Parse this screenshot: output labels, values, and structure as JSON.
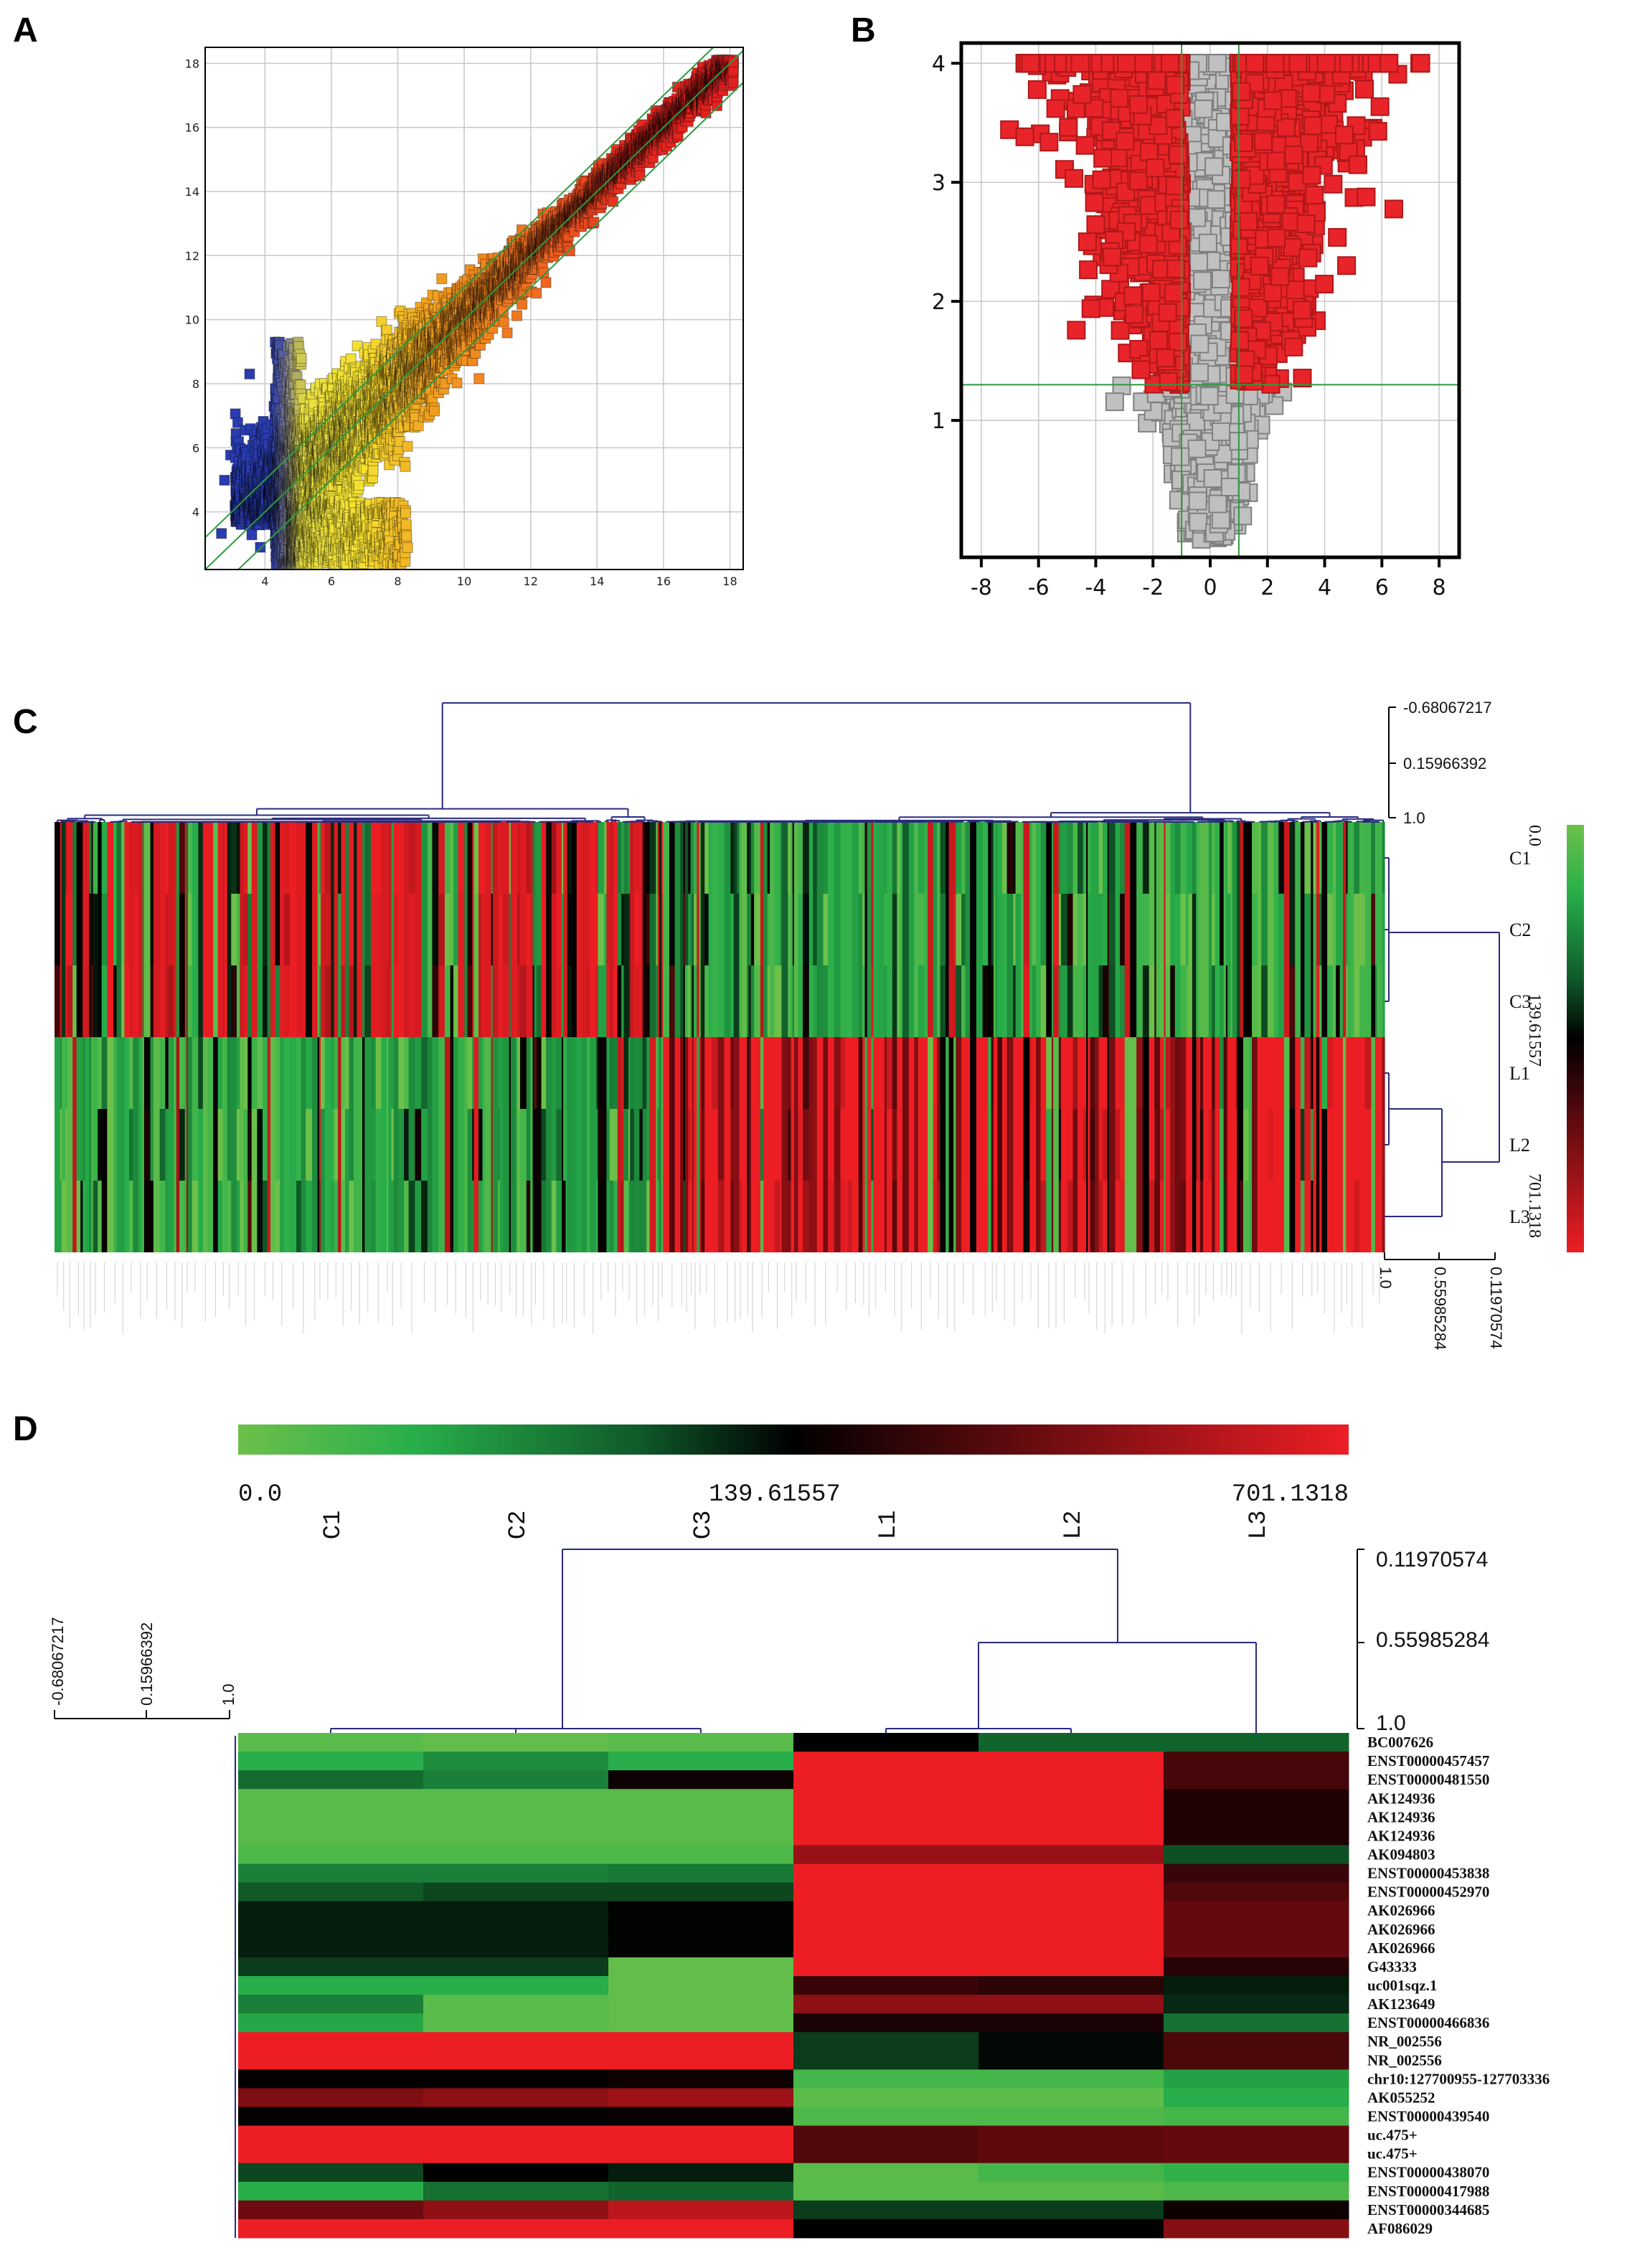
{
  "panels": {
    "a": "A",
    "b": "B",
    "c": "C",
    "d": "D"
  },
  "colors": {
    "low": "#6cc04a",
    "mid": "#000000",
    "high": "#ec1e24",
    "dendrogram": "#2a2a80",
    "fold_line": "#2e9a3e",
    "significant": "#e8242a",
    "not_significant": "#c0c0c0"
  },
  "chart_data": [
    {
      "panel": "A",
      "type": "scatter",
      "xlim": [
        2.2,
        18.4
      ],
      "ylim": [
        2.2,
        18.5
      ],
      "x_ticks": [
        "4",
        "6",
        "8",
        "10",
        "12",
        "14",
        "16",
        "18"
      ],
      "y_ticks": [
        "4",
        "6",
        "8",
        "10",
        "12",
        "14",
        "16",
        "18"
      ],
      "grid": true,
      "fold_change_lines_offsets": [
        -1,
        0,
        1
      ],
      "color_scale": [
        "#2a3cb0",
        "#808080",
        "#e8e040",
        "#f0a020",
        "#e42a20"
      ]
    },
    {
      "panel": "B",
      "type": "scatter",
      "xlim": [
        -8.7,
        8.7
      ],
      "ylim": [
        -0.15,
        4.17
      ],
      "x_ticks": [
        "-8",
        "-6",
        "-4",
        "-2",
        "0",
        "2",
        "4",
        "6",
        "8"
      ],
      "y_ticks": [
        "1",
        "2",
        "3",
        "4"
      ],
      "grid": true,
      "thresholds": {
        "x": [
          -1,
          1
        ],
        "y": 1.3
      }
    },
    {
      "panel": "C",
      "type": "heatmap",
      "rows": [
        "C1",
        "C2",
        "C3",
        "L1",
        "L2",
        "L3"
      ],
      "colorbar": {
        "min": "0.0",
        "mid": "139.61557",
        "max": "701.1318"
      },
      "column_tree_scale": [
        "-0.68067217",
        "0.15966392",
        "1.0"
      ],
      "row_tree_scale": [
        "1.0",
        "0.55985284",
        "0.11970574"
      ]
    },
    {
      "panel": "D",
      "type": "heatmap",
      "columns": [
        "C1",
        "C2",
        "C3",
        "L1",
        "L2",
        "L3"
      ],
      "colorbar": {
        "min": "0.0",
        "mid": "139.61557",
        "max": "701.1318"
      },
      "column_tree_scale": [
        "0.11970574",
        "0.55985284",
        "1.0"
      ],
      "row_tree_scale": [
        "-0.68067217",
        "0.15966392",
        "1.0"
      ],
      "rows": [
        {
          "label": "BC007626",
          "values": [
            10,
            5,
            10,
            140,
            90,
            90
          ]
        },
        {
          "label": "ENST00000457457",
          "values": [
            35,
            60,
            35,
            701,
            701,
            250
          ]
        },
        {
          "label": "ENST00000481550",
          "values": [
            85,
            70,
            160,
            701,
            701,
            250
          ]
        },
        {
          "label": "AK124936",
          "values": [
            10,
            10,
            10,
            701,
            701,
            190
          ]
        },
        {
          "label": "AK124936",
          "values": [
            10,
            10,
            10,
            701,
            701,
            190
          ]
        },
        {
          "label": "AK124936",
          "values": [
            10,
            10,
            10,
            701,
            701,
            190
          ]
        },
        {
          "label": "AK094803",
          "values": [
            15,
            15,
            15,
            450,
            450,
            100
          ]
        },
        {
          "label": "ENST00000453838",
          "values": [
            70,
            70,
            75,
            701,
            701,
            230
          ]
        },
        {
          "label": "ENST00000452970",
          "values": [
            95,
            105,
            105,
            701,
            701,
            270
          ]
        },
        {
          "label": "AK026966",
          "values": [
            125,
            125,
            138,
            701,
            701,
            300
          ]
        },
        {
          "label": "AK026966",
          "values": [
            125,
            125,
            138,
            701,
            701,
            300
          ]
        },
        {
          "label": "AK026966",
          "values": [
            125,
            125,
            138,
            701,
            701,
            300
          ]
        },
        {
          "label": "G43333",
          "values": [
            110,
            110,
            5,
            701,
            701,
            200
          ]
        },
        {
          "label": "uc001sqz.1",
          "values": [
            35,
            35,
            5,
            230,
            210,
            125
          ]
        },
        {
          "label": "AK123649",
          "values": [
            70,
            10,
            5,
            420,
            420,
            120
          ]
        },
        {
          "label": "ENST00000466836",
          "values": [
            40,
            10,
            5,
            180,
            180,
            80
          ]
        },
        {
          "label": "NR_002556",
          "values": [
            701,
            701,
            701,
            110,
            135,
            260
          ]
        },
        {
          "label": "NR_002556",
          "values": [
            701,
            701,
            701,
            110,
            135,
            260
          ]
        },
        {
          "label": "chr10:127700955-127703336",
          "values": [
            150,
            150,
            160,
            20,
            20,
            45
          ]
        },
        {
          "label": "AK055252",
          "values": [
            380,
            420,
            470,
            8,
            8,
            35
          ]
        },
        {
          "label": "ENST00000439540",
          "values": [
            150,
            150,
            155,
            15,
            15,
            20
          ]
        },
        {
          "label": "uc.475+",
          "values": [
            701,
            701,
            701,
            270,
            290,
            300
          ]
        },
        {
          "label": "uc.475+",
          "values": [
            701,
            701,
            701,
            270,
            290,
            300
          ]
        },
        {
          "label": "ENST00000438070",
          "values": [
            105,
            140,
            125,
            10,
            20,
            30
          ]
        },
        {
          "label": "ENST00000417988",
          "values": [
            35,
            80,
            90,
            10,
            10,
            15
          ]
        },
        {
          "label": "ENST00000344685",
          "values": [
            330,
            430,
            560,
            110,
            110,
            160
          ]
        },
        {
          "label": "AF086029",
          "values": [
            701,
            701,
            701,
            140,
            140,
            400
          ]
        }
      ]
    }
  ]
}
